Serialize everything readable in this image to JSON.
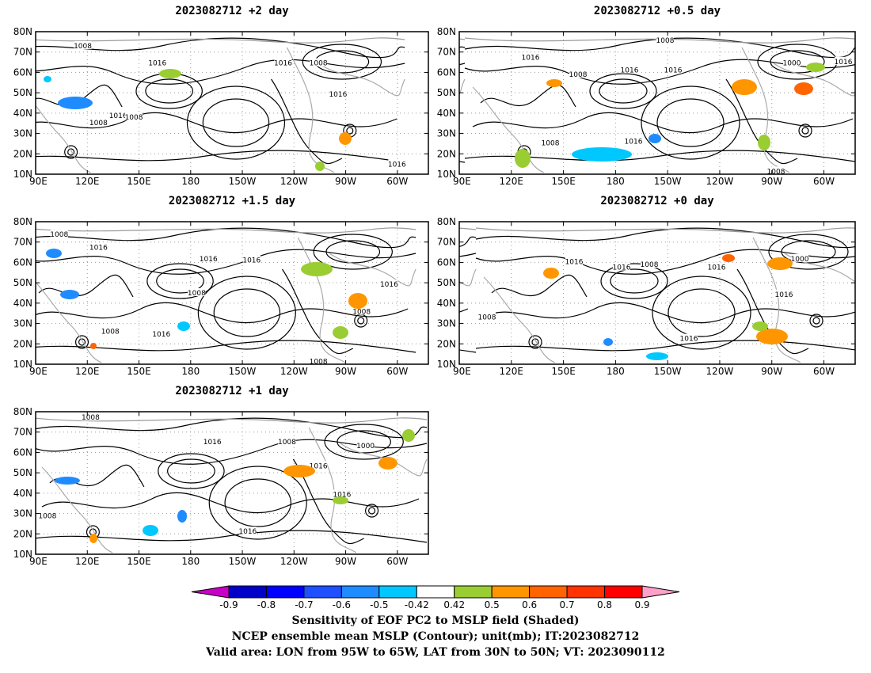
{
  "panels": [
    {
      "id": "p2",
      "title": "2023082712  +2 day",
      "lat_labels": [
        "80N",
        "70N",
        "60N",
        "50N",
        "40N",
        "30N",
        "20N",
        "10N"
      ],
      "lon_labels": [
        "90E",
        "120E",
        "150E",
        "180",
        "150W",
        "120W",
        "90W",
        "60W"
      ],
      "contour_labels": [
        "1008",
        "1016",
        "1016",
        "1008",
        "1016",
        "1016",
        "1008",
        "1008",
        "1016"
      ]
    },
    {
      "id": "p05",
      "title": "2023082712  +0.5 day",
      "lat_labels": [
        "80N",
        "70N",
        "60N",
        "50N",
        "40N",
        "30N",
        "20N",
        "10N"
      ],
      "lon_labels": [
        "90E",
        "120E",
        "150E",
        "180",
        "150W",
        "120W",
        "90W",
        "60W"
      ],
      "contour_labels": [
        "1008",
        "1016",
        "1008",
        "1016",
        "1016",
        "1000",
        "1016",
        "1016",
        "1008",
        "1008"
      ]
    },
    {
      "id": "p15",
      "title": "2023082712  +1.5 day",
      "lat_labels": [
        "80N",
        "70N",
        "60N",
        "50N",
        "40N",
        "30N",
        "20N",
        "10N"
      ],
      "lon_labels": [
        "90E",
        "120E",
        "150E",
        "180",
        "150W",
        "120W",
        "90W",
        "60W"
      ],
      "contour_labels": [
        "1008",
        "1016",
        "1016",
        "1016",
        "1008",
        "1008",
        "1016",
        "1008",
        "1016",
        "1008"
      ]
    },
    {
      "id": "p0",
      "title": "2023082712  +0 day",
      "lat_labels": [
        "80N",
        "70N",
        "60N",
        "50N",
        "40N",
        "30N",
        "20N",
        "10N"
      ],
      "lon_labels": [
        "90E",
        "120E",
        "150E",
        "180",
        "150W",
        "120W",
        "90W",
        "60W"
      ],
      "contour_labels": [
        "1008",
        "1016",
        "1008",
        "1016",
        "1000",
        "1016",
        "1016",
        "1008",
        "1016"
      ]
    },
    {
      "id": "p1",
      "title": "2023082712  +1 day",
      "lat_labels": [
        "80N",
        "70N",
        "60N",
        "50N",
        "40N",
        "30N",
        "20N",
        "10N"
      ],
      "lon_labels": [
        "90E",
        "120E",
        "150E",
        "180",
        "150W",
        "120W",
        "90W",
        "60W"
      ],
      "contour_labels": [
        "1008",
        "1016",
        "1008",
        "1016",
        "1000",
        "1016",
        "1008",
        "1016"
      ]
    }
  ],
  "colorbar": {
    "labels": [
      "-0.9",
      "-0.8",
      "-0.7",
      "-0.6",
      "-0.5",
      "-0.42",
      "0.42",
      "0.5",
      "0.6",
      "0.7",
      "0.8",
      "0.9"
    ],
    "colors": [
      "#c800c8",
      "#0000c8",
      "#0000ff",
      "#1e50ff",
      "#1e8cff",
      "#00c8ff",
      "#ffffff",
      "#9acd32",
      "#ff9600",
      "#ff6400",
      "#ff3200",
      "#ff0000",
      "#ffa0c8"
    ]
  },
  "caption": {
    "line1": "Sensitivity of EOF PC2 to MSLP field (Shaded)",
    "line2": "NCEP ensemble mean MSLP (Contour); unit(mb); IT:2023082712",
    "line3": "Valid area: LON from 95W to 65W, LAT from 30N to 50N; VT: 2023090112"
  }
}
